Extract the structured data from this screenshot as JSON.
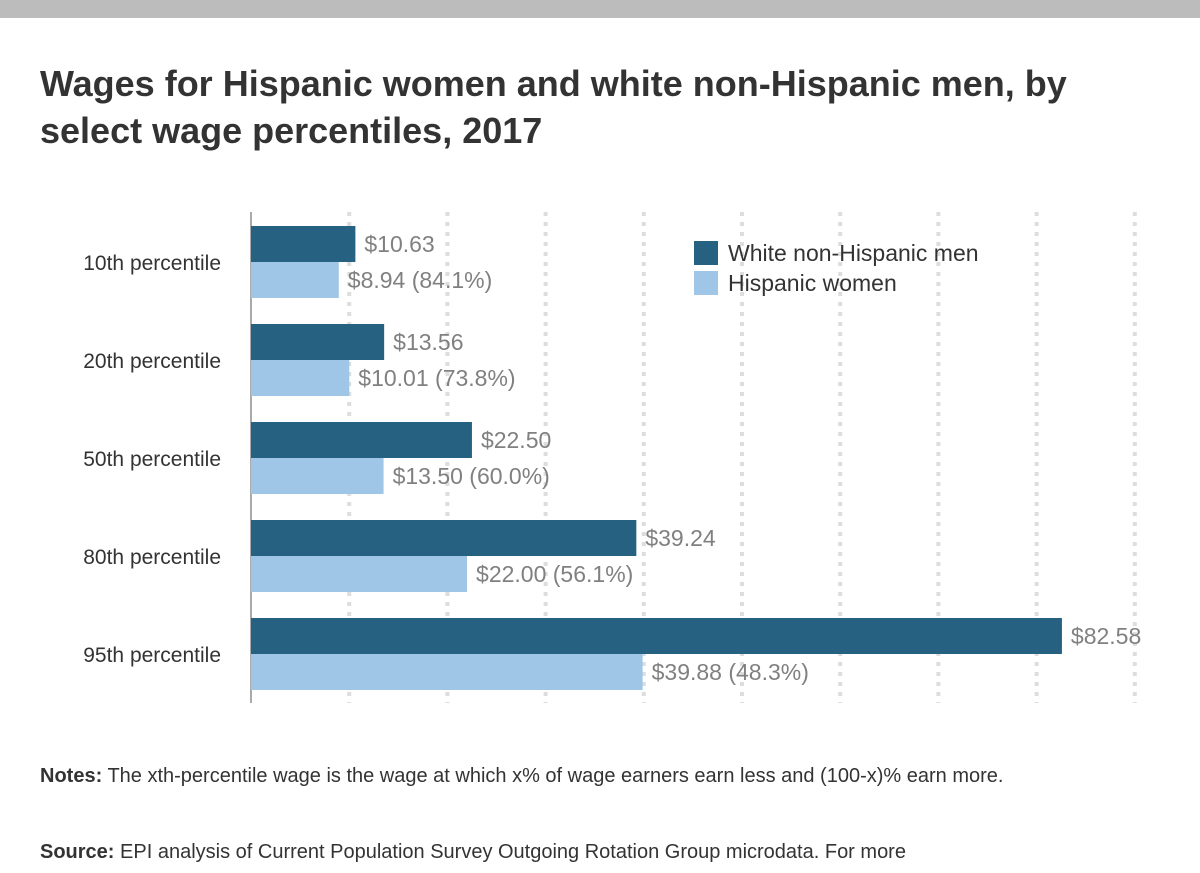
{
  "title": "Wages for Hispanic women and white non-Hispanic men, by select wage percentiles, 2017",
  "notes": {
    "label": "Notes:",
    "text": "The xth-percentile wage is the wage at which x% of wage earners earn less and (100-x)% earn more."
  },
  "source": {
    "label": "Source:",
    "text": "EPI analysis of Current Population Survey Outgoing Rotation Group microdata. For more"
  },
  "colors": {
    "men": "#266182",
    "women": "#9fc6e7",
    "value_text": "#808080",
    "grid": "#dddddd",
    "axis": "#aaaaaa"
  },
  "chart_data": {
    "type": "bar",
    "orientation": "horizontal",
    "categories": [
      "10th percentile",
      "20th percentile",
      "50th percentile",
      "80th percentile",
      "95th percentile"
    ],
    "series": [
      {
        "name": "White non-Hispanic men",
        "values": [
          10.63,
          13.56,
          22.5,
          39.24,
          82.58
        ],
        "labels": [
          "$10.63",
          "$13.56",
          "$22.50",
          "$39.24",
          "$82.58"
        ]
      },
      {
        "name": "Hispanic women",
        "values": [
          8.94,
          10.01,
          13.5,
          22.0,
          39.88
        ],
        "labels": [
          "$8.94 (84.1%)",
          "$10.01 (73.8%)",
          "$13.50 (60.0%)",
          "$22.00 (56.1%)",
          "$39.88 (48.3%)"
        ]
      }
    ],
    "xlim": [
      0,
      90
    ],
    "grid": true,
    "grid_style": "dotted vertical",
    "legend_position": "top-right"
  }
}
